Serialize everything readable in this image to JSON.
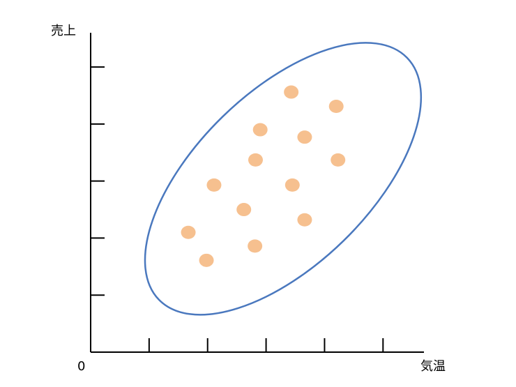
{
  "chart_data": {
    "type": "scatter",
    "title": "",
    "xlabel": "気温",
    "ylabel": "売上",
    "origin_label": "0",
    "xlim": [
      0,
      5.7
    ],
    "ylim": [
      0,
      5.6
    ],
    "x_ticks": [
      1,
      2,
      3,
      4,
      5
    ],
    "y_ticks": [
      1,
      2,
      3,
      4,
      5
    ],
    "tick_labels_shown": false,
    "grid": false,
    "legend": "none",
    "points": [
      {
        "x": 1.67,
        "y": 2.1
      },
      {
        "x": 1.98,
        "y": 1.61
      },
      {
        "x": 2.11,
        "y": 2.93
      },
      {
        "x": 2.62,
        "y": 2.5
      },
      {
        "x": 2.81,
        "y": 1.86
      },
      {
        "x": 2.82,
        "y": 3.37
      },
      {
        "x": 2.9,
        "y": 3.9
      },
      {
        "x": 3.45,
        "y": 2.93
      },
      {
        "x": 3.43,
        "y": 4.56
      },
      {
        "x": 3.66,
        "y": 3.77
      },
      {
        "x": 3.66,
        "y": 2.32
      },
      {
        "x": 4.2,
        "y": 4.31
      },
      {
        "x": 4.23,
        "y": 3.37
      }
    ],
    "enclosing_ellipse": {
      "center": {
        "x": 3.29,
        "y": 3.04
      },
      "semi_axis_major": 3.0,
      "semi_axis_minor": 1.5,
      "angle_deg": 45
    },
    "colors": {
      "axis": "#000000",
      "point": "#F6C08F",
      "ellipse": "#4A78BE"
    }
  }
}
